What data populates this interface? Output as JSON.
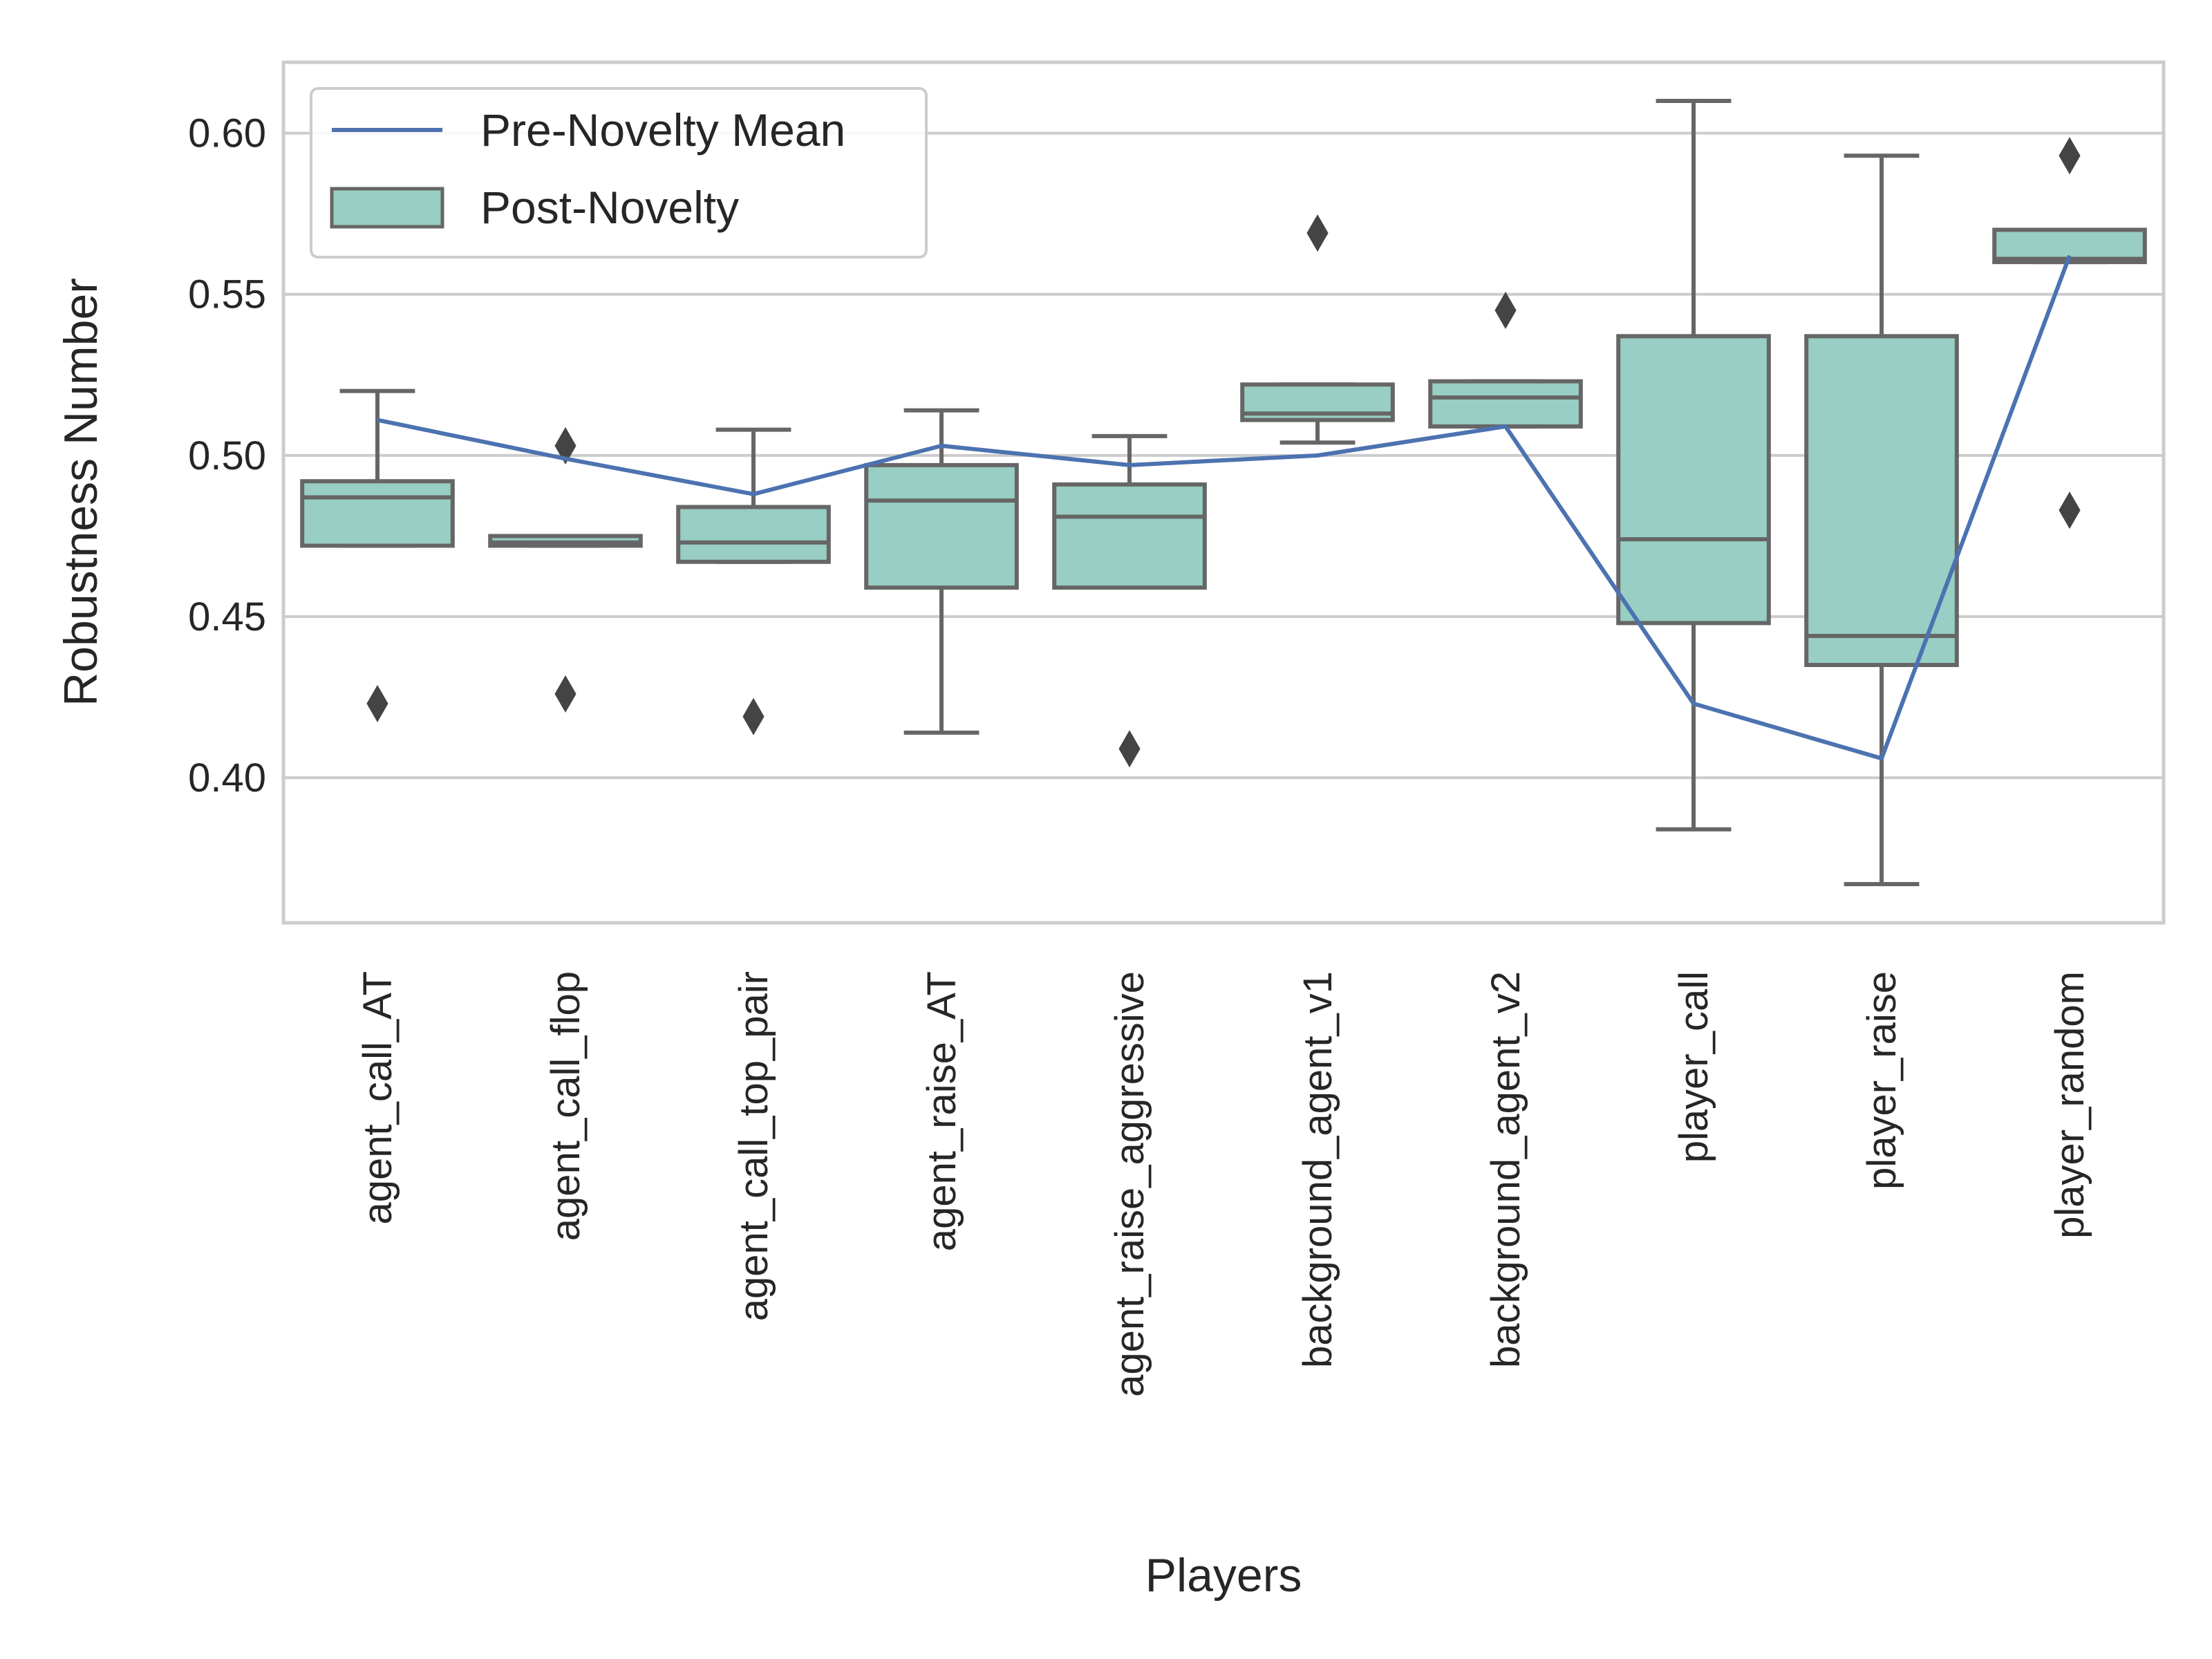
{
  "chart_data": {
    "type": "box",
    "title": "",
    "xlabel": "Players",
    "ylabel": "Robustness Number",
    "ylim": [
      0.355,
      0.622
    ],
    "yticks": [
      0.4,
      0.45,
      0.5,
      0.55,
      0.6
    ],
    "ytick_labels": [
      "0.40",
      "0.45",
      "0.50",
      "0.55",
      "0.60"
    ],
    "grid": "horizontal",
    "legend": {
      "position": "top-left",
      "entries": [
        "Pre-Novelty Mean",
        "Post-Novelty"
      ]
    },
    "colors": {
      "box": "#98cec4",
      "box_edge": "#666666",
      "line": "#4c72b0",
      "grid": "#cccccc"
    },
    "categories": [
      "agent_call_AT",
      "agent_call_flop",
      "agent_call_top_pair",
      "agent_raise_AT",
      "agent_raise_aggressive",
      "background_agent_v1",
      "background_agent_v2",
      "player_call",
      "player_raise",
      "player_random"
    ],
    "boxes": [
      {
        "whislo": 0.472,
        "q1": 0.472,
        "med": 0.487,
        "q3": 0.492,
        "whishi": 0.52,
        "fliers": [
          0.423
        ]
      },
      {
        "whislo": 0.472,
        "q1": 0.472,
        "med": 0.473,
        "q3": 0.475,
        "whishi": 0.475,
        "fliers": [
          0.426,
          0.503
        ]
      },
      {
        "whislo": 0.467,
        "q1": 0.467,
        "med": 0.473,
        "q3": 0.484,
        "whishi": 0.508,
        "fliers": [
          0.419
        ]
      },
      {
        "whislo": 0.414,
        "q1": 0.459,
        "med": 0.486,
        "q3": 0.497,
        "whishi": 0.514,
        "fliers": []
      },
      {
        "whislo": 0.459,
        "q1": 0.459,
        "med": 0.481,
        "q3": 0.491,
        "whishi": 0.506,
        "fliers": [
          0.409
        ]
      },
      {
        "whislo": 0.504,
        "q1": 0.511,
        "med": 0.513,
        "q3": 0.522,
        "whishi": 0.522,
        "fliers": [
          0.569
        ]
      },
      {
        "whislo": 0.509,
        "q1": 0.509,
        "med": 0.518,
        "q3": 0.523,
        "whishi": 0.523,
        "fliers": [
          0.545
        ]
      },
      {
        "whislo": 0.384,
        "q1": 0.448,
        "med": 0.474,
        "q3": 0.537,
        "whishi": 0.61,
        "fliers": []
      },
      {
        "whislo": 0.367,
        "q1": 0.435,
        "med": 0.444,
        "q3": 0.537,
        "whishi": 0.593,
        "fliers": []
      },
      {
        "whislo": 0.56,
        "q1": 0.56,
        "med": 0.561,
        "q3": 0.57,
        "whishi": 0.57,
        "fliers": [
          0.483,
          0.593
        ]
      }
    ],
    "series": [
      {
        "name": "Pre-Novelty Mean",
        "type": "line",
        "values": [
          0.511,
          0.499,
          0.488,
          0.503,
          0.497,
          0.5,
          0.509,
          0.423,
          0.406,
          0.562
        ]
      }
    ]
  }
}
